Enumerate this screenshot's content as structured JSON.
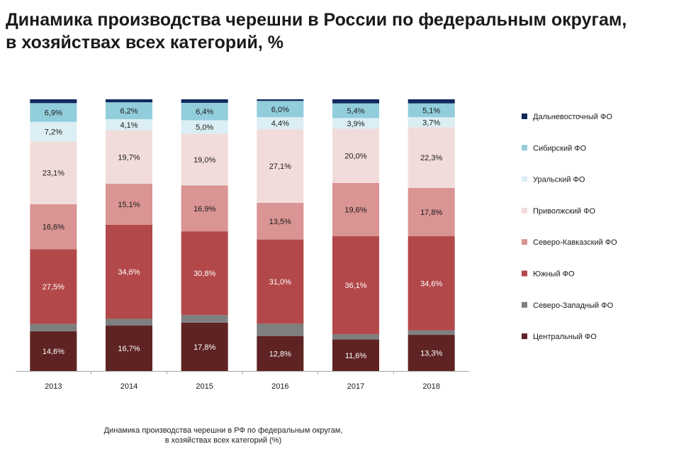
{
  "title": {
    "line1": "Динамика производства черешни в России по федеральным округам,",
    "line2": "в хозяйствах всех категорий, %"
  },
  "caption": {
    "line1": "Динамика производства черешни  в РФ по федеральным округам,",
    "line2": "в хозяйствах всех категорий (%)"
  },
  "chart_data": {
    "type": "bar",
    "stacked": true,
    "categories": [
      "2013",
      "2014",
      "2015",
      "2016",
      "2017",
      "2018"
    ],
    "ylim": [
      0,
      100
    ],
    "grid": false,
    "legend_position": "right",
    "series": [
      {
        "name": "Центральный ФО",
        "color": "#5e2322",
        "values": [
          14.6,
          16.7,
          17.8,
          12.8,
          11.6,
          13.3
        ],
        "labels": [
          "14,6%",
          "16,7%",
          "17,8%",
          "12,8%",
          "11,6%",
          "13,3%"
        ]
      },
      {
        "name": "Северо-Западный ФО",
        "color": "#7f7f7f",
        "values": [
          2.7,
          2.5,
          2.8,
          4.6,
          1.9,
          1.7
        ],
        "labels": [
          "",
          "",
          "",
          "",
          "",
          ""
        ]
      },
      {
        "name": "Южный ФО",
        "color": "#b3484a",
        "values": [
          27.5,
          34.6,
          30.8,
          31.0,
          36.1,
          34.6
        ],
        "labels": [
          "27,5%",
          "34,6%",
          "30,8%",
          "31,0%",
          "36,1%",
          "34,6%"
        ]
      },
      {
        "name": "Северо-Кавказский ФО",
        "color": "#d99493",
        "values": [
          16.6,
          15.1,
          16.9,
          13.5,
          19.6,
          17.8
        ],
        "labels": [
          "16,6%",
          "15,1%",
          "16,9%",
          "13,5%",
          "19,6%",
          "17,8%"
        ]
      },
      {
        "name": "Приволжский ФО",
        "color": "#f2dcdb",
        "values": [
          23.1,
          19.7,
          19.0,
          27.1,
          20.0,
          22.3
        ],
        "labels": [
          "23,1%",
          "19,7%",
          "19,0%",
          "27,1%",
          "20,0%",
          "22,3%"
        ]
      },
      {
        "name": "Уральский ФО",
        "color": "#dbeef4",
        "values": [
          7.2,
          4.1,
          5.0,
          4.4,
          3.9,
          3.7
        ],
        "labels": [
          "7,2%",
          "4,1%",
          "5,0%",
          "4,4%",
          "3,9%",
          "3,7%"
        ]
      },
      {
        "name": "Сибирский ФО",
        "color": "#92cddc",
        "values": [
          6.9,
          6.2,
          6.4,
          6.0,
          5.4,
          5.1
        ],
        "labels": [
          "6,9%",
          "6,2%",
          "6,4%",
          "6,0%",
          "5,4%",
          "5,1%"
        ]
      },
      {
        "name": "Дальневосточный ФО",
        "color": "#0f2a5c",
        "values": [
          1.4,
          1.1,
          1.3,
          0.6,
          1.5,
          1.5
        ],
        "labels": [
          "",
          "",
          "",
          "",
          "",
          ""
        ]
      }
    ],
    "legend_order": [
      "Дальневосточный ФО",
      "Сибирский ФО",
      "Уральский ФО",
      "Приволжский ФО",
      "Северо-Кавказский ФО",
      "Южный ФО",
      "Северо-Западный ФО",
      "Центральный ФО"
    ]
  }
}
